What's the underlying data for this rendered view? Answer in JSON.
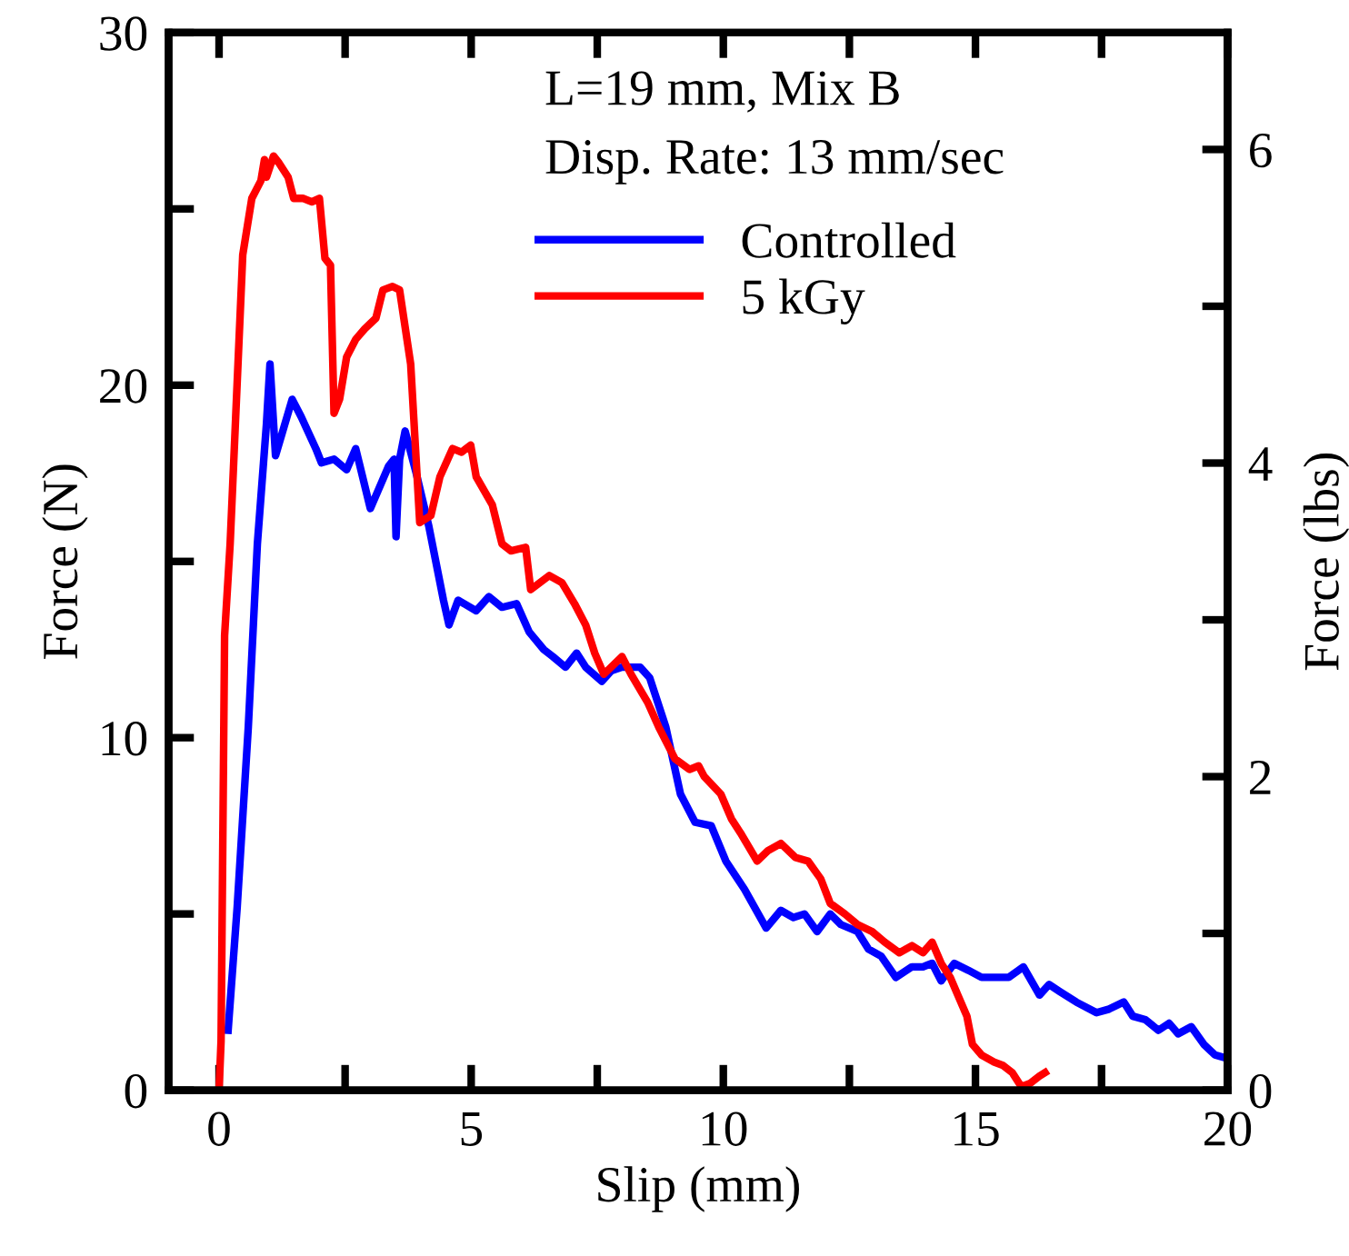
{
  "chart_data": {
    "type": "line",
    "xlabel": "Slip (mm)",
    "ylabel": "Force (N)",
    "y2label": "Force (lbs)",
    "annotations": [
      "L=19 mm, Mix B",
      "Disp. Rate: 13 mm/sec"
    ],
    "xlim": [
      -1,
      20
    ],
    "xticks": [
      0,
      {
        "value": 2.5,
        "label": null
      },
      5,
      {
        "value": 7.5,
        "label": null
      },
      10,
      {
        "value": 12.5,
        "label": null
      },
      15,
      {
        "value": 17.5,
        "label": null
      },
      20
    ],
    "ylim": [
      0,
      30
    ],
    "yticks": [
      0,
      {
        "value": 5,
        "label": null
      },
      10,
      {
        "value": 15,
        "label": null
      },
      20,
      {
        "value": 25,
        "label": null
      },
      30
    ],
    "y2lim": [
      0,
      6.745
    ],
    "y2ticks": [
      0,
      {
        "value": 1,
        "label": null
      },
      2,
      {
        "value": 3,
        "label": null
      },
      4,
      {
        "value": 5,
        "label": null
      },
      6
    ],
    "grid": false,
    "legend": "top right",
    "marker": "none",
    "line_style": "solid",
    "series": [
      {
        "name": "Controlled",
        "color": "#0000ff",
        "x": [
          0.18,
          0.36,
          0.58,
          0.76,
          0.94,
          1.01,
          1.12,
          1.45,
          1.63,
          1.92,
          2.03,
          2.28,
          2.53,
          2.71,
          3.0,
          3.36,
          3.47,
          3.51,
          3.58,
          3.69,
          3.91,
          4.16,
          4.45,
          4.56,
          4.74,
          5.1,
          5.35,
          5.61,
          5.9,
          6.15,
          6.44,
          6.62,
          6.87,
          7.09,
          7.27,
          7.59,
          7.78,
          7.99,
          8.35,
          8.54,
          8.86,
          9.15,
          9.44,
          9.76,
          10.05,
          10.42,
          10.85,
          11.14,
          11.39,
          11.61,
          11.86,
          12.12,
          12.33,
          12.66,
          12.88,
          13.13,
          13.42,
          13.74,
          13.96,
          14.14,
          14.32,
          14.58,
          14.86,
          15.12,
          15.37,
          15.66,
          15.95,
          16.27,
          16.46,
          16.67,
          17.0,
          17.4,
          17.65,
          17.94,
          18.12,
          18.37,
          18.63,
          18.84,
          19.02,
          19.28,
          19.53,
          19.75,
          20.0
        ],
        "values": [
          1.7,
          5.2,
          10.3,
          15.5,
          18.9,
          20.6,
          18.0,
          19.6,
          19.1,
          18.2,
          17.8,
          17.9,
          17.6,
          18.2,
          16.5,
          17.7,
          17.9,
          15.7,
          17.9,
          18.7,
          17.5,
          16.0,
          13.9,
          13.2,
          13.9,
          13.6,
          14.0,
          13.7,
          13.8,
          13.0,
          12.5,
          12.3,
          12.0,
          12.4,
          12.0,
          11.6,
          11.9,
          12.0,
          12.0,
          11.7,
          10.3,
          8.4,
          7.6,
          7.5,
          6.5,
          5.7,
          4.6,
          5.1,
          4.9,
          5.0,
          4.5,
          5.0,
          4.7,
          4.5,
          4.0,
          3.8,
          3.2,
          3.5,
          3.5,
          3.6,
          3.1,
          3.6,
          3.4,
          3.2,
          3.2,
          3.2,
          3.5,
          2.7,
          3.0,
          2.8,
          2.5,
          2.2,
          2.3,
          2.5,
          2.1,
          2.0,
          1.7,
          1.9,
          1.6,
          1.8,
          1.3,
          1.0,
          0.9
        ]
      },
      {
        "name": "5 kGy",
        "color": "#ff0000",
        "x": [
          0,
          0.04,
          0.11,
          0.22,
          0.47,
          0.65,
          0.83,
          0.9,
          0.94,
          1.08,
          1.19,
          1.37,
          1.48,
          1.66,
          1.84,
          1.99,
          2.1,
          2.21,
          2.28,
          2.39,
          2.53,
          2.71,
          2.89,
          3.11,
          3.25,
          3.44,
          3.58,
          3.8,
          3.98,
          4.2,
          4.38,
          4.63,
          4.81,
          4.99,
          5.1,
          5.42,
          5.61,
          5.79,
          6.08,
          6.18,
          6.55,
          6.8,
          7.05,
          7.27,
          7.45,
          7.63,
          7.99,
          8.17,
          8.5,
          8.72,
          9.04,
          9.33,
          9.51,
          9.62,
          9.95,
          10.16,
          10.34,
          10.67,
          10.89,
          11.14,
          11.43,
          11.68,
          11.93,
          12.12,
          12.41,
          12.66,
          12.95,
          13.2,
          13.49,
          13.74,
          13.96,
          14.14,
          14.32,
          14.5,
          14.65,
          14.83,
          14.94,
          15.12,
          15.37,
          15.55,
          15.73,
          15.91,
          16.09,
          16.27,
          16.38
        ],
        "values": [
          0,
          1.4,
          12.9,
          15.5,
          23.7,
          25.3,
          25.8,
          26.4,
          25.9,
          26.5,
          26.3,
          25.9,
          25.3,
          25.3,
          25.2,
          25.3,
          23.6,
          23.4,
          19.2,
          19.6,
          20.8,
          21.3,
          21.6,
          21.9,
          22.7,
          22.8,
          22.7,
          20.6,
          16.1,
          16.3,
          17.4,
          18.2,
          18.1,
          18.3,
          17.4,
          16.6,
          15.5,
          15.3,
          15.4,
          14.2,
          14.6,
          14.4,
          13.8,
          13.2,
          12.4,
          11.8,
          12.3,
          11.8,
          11.0,
          10.3,
          9.4,
          9.1,
          9.2,
          8.9,
          8.4,
          7.7,
          7.3,
          6.5,
          6.8,
          7.0,
          6.6,
          6.5,
          6.0,
          5.3,
          5.0,
          4.7,
          4.5,
          4.2,
          3.9,
          4.1,
          3.9,
          4.2,
          3.6,
          3.2,
          2.7,
          2.1,
          1.3,
          1.0,
          0.8,
          0.7,
          0.5,
          0.1,
          0.2,
          0.4,
          0.5
        ]
      }
    ]
  }
}
